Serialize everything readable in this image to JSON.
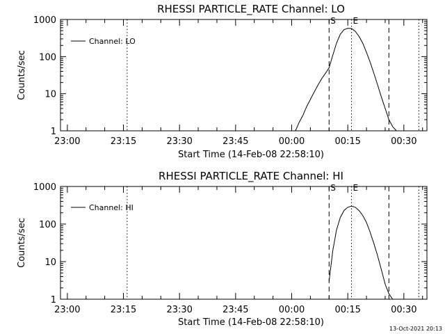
{
  "chart_data": [
    {
      "type": "line",
      "title": "RHESSI PARTICLE_RATE Channel: LO",
      "xlabel": "Start Time (14-Feb-08 22:58:10)",
      "ylabel": "Counts/sec",
      "yscale": "log",
      "ylim": [
        1,
        1000
      ],
      "xlim_minutes": [
        0,
        98
      ],
      "x_ticks": [
        "23:00",
        "23:15",
        "23:30",
        "23:45",
        "00:00",
        "00:15",
        "00:30"
      ],
      "y_ticks": [
        "1",
        "10",
        "100",
        "1000"
      ],
      "legend": "Channel: LO",
      "legend_position": "top-left",
      "grid": false,
      "markers": [
        {
          "label": "",
          "time": "23:16",
          "style": "dotted"
        },
        {
          "label": "S",
          "time": "00:10",
          "style": "dashed"
        },
        {
          "label": "E",
          "time": "00:16",
          "style": "dotted"
        },
        {
          "label": "",
          "time": "00:26",
          "style": "dashed"
        },
        {
          "label": "",
          "time": "00:34",
          "style": "dotted"
        }
      ],
      "series": [
        {
          "name": "Channel: LO",
          "x": [
            "00:01",
            "00:02",
            "00:03",
            "00:04",
            "00:05",
            "00:06",
            "00:07",
            "00:08",
            "00:09",
            "00:10",
            "00:11",
            "00:12",
            "00:13",
            "00:14",
            "00:15",
            "00:16",
            "00:17",
            "00:18",
            "00:19",
            "00:20",
            "00:21",
            "00:22",
            "00:23",
            "00:24",
            "00:25",
            "00:26",
            "00:27",
            "00:28"
          ],
          "y": [
            1.0,
            1.7,
            2.6,
            4.5,
            7,
            11,
            17,
            25,
            35,
            50,
            110,
            230,
            400,
            530,
            580,
            570,
            480,
            350,
            230,
            130,
            70,
            35,
            17,
            8,
            4,
            2,
            1.3,
            1.0
          ]
        }
      ]
    },
    {
      "type": "line",
      "title": "RHESSI PARTICLE_RATE Channel: HI",
      "xlabel": "Start Time (14-Feb-08 22:58:10)",
      "ylabel": "Counts/sec",
      "yscale": "log",
      "ylim": [
        1,
        1000
      ],
      "xlim_minutes": [
        0,
        98
      ],
      "x_ticks": [
        "23:00",
        "23:15",
        "23:30",
        "23:45",
        "00:00",
        "00:15",
        "00:30"
      ],
      "y_ticks": [
        "1",
        "10",
        "100",
        "1000"
      ],
      "legend": "Channel: HI",
      "legend_position": "top-left",
      "grid": false,
      "markers": [
        {
          "label": "",
          "time": "23:16",
          "style": "dotted"
        },
        {
          "label": "S",
          "time": "00:10",
          "style": "dashed"
        },
        {
          "label": "E",
          "time": "00:16",
          "style": "dotted"
        },
        {
          "label": "",
          "time": "00:26",
          "style": "dashed"
        },
        {
          "label": "",
          "time": "00:34",
          "style": "dotted"
        }
      ],
      "series": [
        {
          "name": "Channel: HI",
          "x": [
            "00:10",
            "00:11",
            "00:12",
            "00:13",
            "00:14",
            "00:15",
            "00:16",
            "00:17",
            "00:18",
            "00:19",
            "00:20",
            "00:21",
            "00:22",
            "00:23",
            "00:24",
            "00:25",
            "00:26",
            "00:27"
          ],
          "y": [
            3,
            20,
            70,
            150,
            230,
            280,
            300,
            280,
            230,
            170,
            110,
            60,
            30,
            14,
            6,
            2.5,
            1.4,
            1.0
          ]
        }
      ]
    }
  ],
  "timestamp": "13-Oct-2021 20:13"
}
